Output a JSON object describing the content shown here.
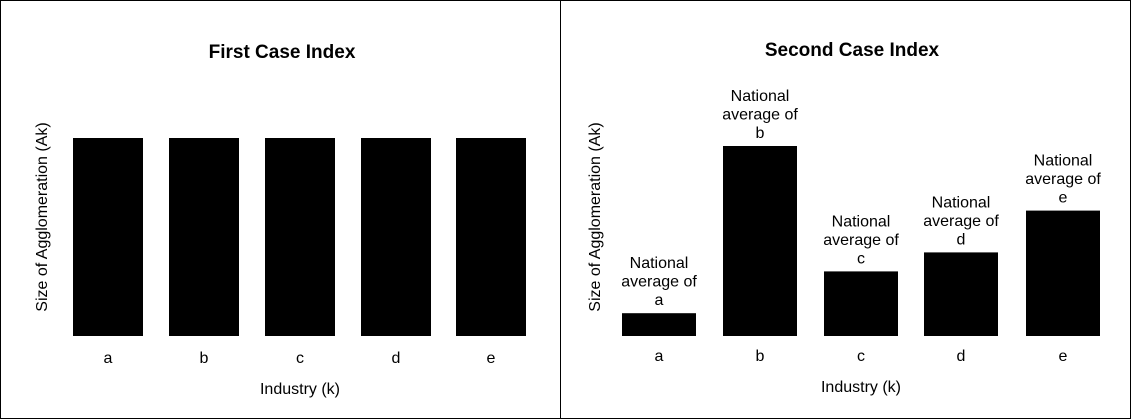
{
  "chart_data": [
    {
      "type": "bar",
      "title": "First Case Index",
      "xlabel": "Industry (k)",
      "ylabel": "Size of Agglomeration (Ak)",
      "categories": [
        "a",
        "b",
        "c",
        "d",
        "e"
      ],
      "values": [
        100,
        100,
        100,
        100,
        100
      ],
      "ylim": [
        0,
        100
      ],
      "bar_labels": [],
      "grid": false,
      "legend": "none",
      "bar_color": "#000000"
    },
    {
      "type": "bar",
      "title": "Second Case Index",
      "xlabel": "Industry (k)",
      "ylabel": "Size of Agglomeration (Ak)",
      "categories": [
        "a",
        "b",
        "c",
        "d",
        "e"
      ],
      "values": [
        12,
        100,
        34,
        44,
        66
      ],
      "ylim": [
        0,
        100
      ],
      "bar_labels": [
        [
          "National",
          "average of",
          "a"
        ],
        [
          "National",
          "average of",
          "b"
        ],
        [
          "National",
          "average of",
          "c"
        ],
        [
          "National",
          "average of",
          "d"
        ],
        [
          "National",
          "average of",
          "e"
        ]
      ],
      "grid": false,
      "legend": "none",
      "bar_color": "#000000"
    }
  ]
}
